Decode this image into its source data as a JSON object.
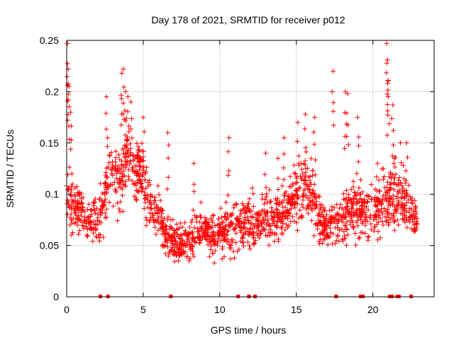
{
  "chart_data": {
    "type": "scatter",
    "title": "Day 178 of 2021, SRMTID for receiver p012",
    "xlabel": "GPS time / hours",
    "ylabel": "SRMTID / TECUs",
    "xlim": [
      0,
      24
    ],
    "ylim": [
      0,
      0.25
    ],
    "xticks": [
      0,
      5,
      10,
      15,
      20
    ],
    "xtick_labels": [
      "0",
      "5",
      "10",
      "15",
      "20"
    ],
    "yticks": [
      0,
      0.05,
      0.1,
      0.15,
      0.2,
      0.25
    ],
    "ytick_labels": [
      "0",
      "0.05",
      "0.1",
      "0.15",
      "0.2",
      "0.25"
    ],
    "grid": true,
    "marker": "+",
    "color": "#ff0000",
    "series": [
      {
        "name": "SRMTID",
        "envelope": {
          "x": [
            0,
            0.5,
            1,
            1.5,
            2,
            2.5,
            3,
            3.5,
            4,
            4.5,
            5,
            5.5,
            6,
            6.5,
            7,
            7.5,
            8,
            8.5,
            9,
            9.5,
            10,
            10.5,
            11,
            11.5,
            12,
            12.5,
            13,
            13.5,
            14,
            14.5,
            15,
            15.5,
            16,
            16.5,
            17,
            17.5,
            18,
            18.5,
            19,
            19.5,
            20,
            20.5,
            21,
            21.5,
            22,
            22.5,
            22.9
          ],
          "center": [
            0.095,
            0.09,
            0.085,
            0.072,
            0.07,
            0.095,
            0.12,
            0.115,
            0.14,
            0.12,
            0.115,
            0.09,
            0.08,
            0.06,
            0.055,
            0.05,
            0.055,
            0.065,
            0.065,
            0.06,
            0.065,
            0.065,
            0.07,
            0.07,
            0.075,
            0.075,
            0.075,
            0.075,
            0.08,
            0.09,
            0.1,
            0.11,
            0.1,
            0.075,
            0.07,
            0.07,
            0.075,
            0.085,
            0.085,
            0.085,
            0.085,
            0.09,
            0.095,
            0.1,
            0.09,
            0.085,
            0.07
          ],
          "spread": [
            0.045,
            0.04,
            0.035,
            0.03,
            0.03,
            0.04,
            0.05,
            0.05,
            0.05,
            0.05,
            0.045,
            0.04,
            0.035,
            0.03,
            0.025,
            0.025,
            0.03,
            0.03,
            0.03,
            0.03,
            0.035,
            0.035,
            0.035,
            0.035,
            0.035,
            0.035,
            0.035,
            0.035,
            0.035,
            0.035,
            0.04,
            0.045,
            0.045,
            0.035,
            0.03,
            0.03,
            0.035,
            0.04,
            0.04,
            0.035,
            0.035,
            0.04,
            0.045,
            0.045,
            0.04,
            0.035,
            0.03
          ]
        },
        "peaks": [
          [
            0.05,
            0.247
          ],
          [
            0.1,
            0.222
          ],
          [
            0.15,
            0.205
          ],
          [
            0.25,
            0.18
          ],
          [
            3.6,
            0.218
          ],
          [
            3.7,
            0.222
          ],
          [
            3.85,
            0.2
          ],
          [
            4.0,
            0.195
          ],
          [
            4.2,
            0.19
          ],
          [
            2.6,
            0.195
          ],
          [
            5.0,
            0.175
          ],
          [
            6.6,
            0.16
          ],
          [
            8.3,
            0.13
          ],
          [
            10.6,
            0.155
          ],
          [
            13.0,
            0.14
          ],
          [
            13.8,
            0.135
          ],
          [
            14.2,
            0.155
          ],
          [
            15.1,
            0.17
          ],
          [
            15.6,
            0.178
          ],
          [
            16.2,
            0.175
          ],
          [
            17.4,
            0.22
          ],
          [
            18.2,
            0.2
          ],
          [
            18.35,
            0.198
          ],
          [
            19.0,
            0.175
          ],
          [
            20.3,
            0.13
          ],
          [
            20.9,
            0.247
          ],
          [
            20.95,
            0.231
          ],
          [
            21.0,
            0.211
          ],
          [
            21.3,
            0.187
          ],
          [
            21.8,
            0.15
          ],
          [
            22.2,
            0.15
          ]
        ],
        "density_points": 1800,
        "zero_markers": [
          2.2,
          2.7,
          6.8,
          11.2,
          11.9,
          12.3,
          17.6,
          19.2,
          19.35,
          21.1,
          21.25,
          21.6,
          21.7,
          22.5
        ]
      }
    ]
  }
}
